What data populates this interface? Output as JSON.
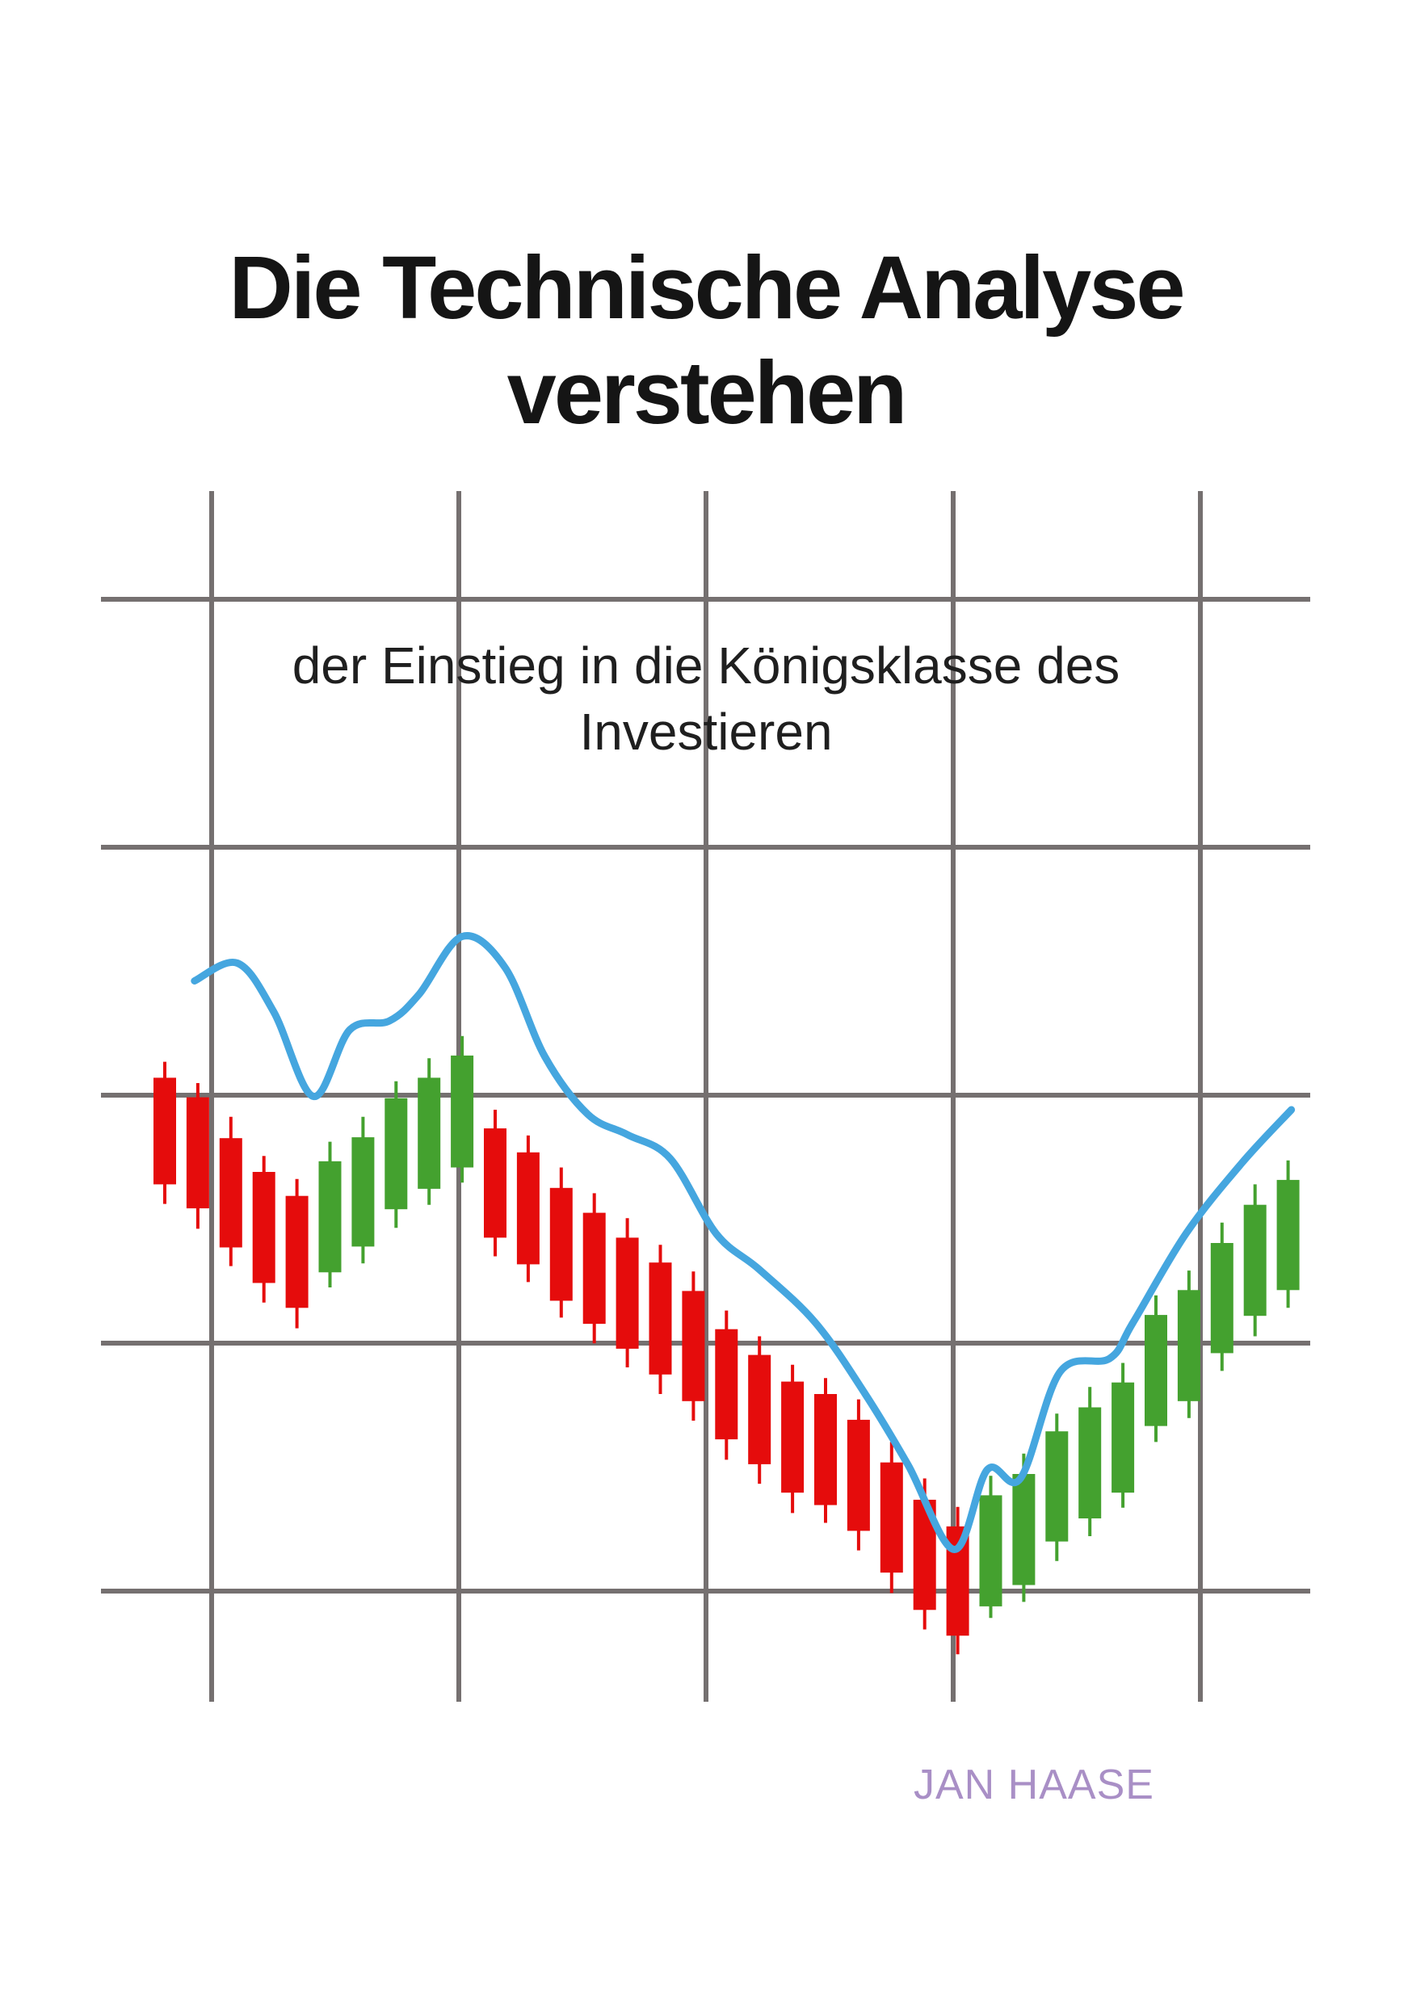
{
  "cover": {
    "title_lines": [
      "Die Technische Analyse",
      "verstehen"
    ],
    "subtitle_lines": [
      "der Einstieg in die Königsklasse des",
      "Investieren"
    ],
    "author": "JAN HAASE"
  },
  "colors": {
    "background": "#ffffff",
    "title": "#151515",
    "subtitle": "#1f1f1f",
    "author": "#a98fc6",
    "grid": "#757070",
    "bullish": "#44a12f",
    "bearish": "#e50c0c",
    "trend_line": "#45a6df"
  },
  "chart_data": {
    "type": "candlestick",
    "grid": true,
    "ylim": [
      0,
      100
    ],
    "candles": [
      {
        "o": 66.6,
        "c": 54.6,
        "h": 68.4,
        "l": 52.4
      },
      {
        "o": 64.4,
        "c": 51.9,
        "h": 66.0,
        "l": 49.6
      },
      {
        "o": 59.8,
        "c": 47.5,
        "h": 62.2,
        "l": 45.4
      },
      {
        "o": 56.0,
        "c": 43.5,
        "h": 57.8,
        "l": 41.3
      },
      {
        "o": 53.3,
        "c": 40.7,
        "h": 55.2,
        "l": 38.4
      },
      {
        "o": 44.7,
        "c": 57.2,
        "h": 59.4,
        "l": 43.0
      },
      {
        "o": 47.6,
        "c": 59.9,
        "h": 62.2,
        "l": 45.7
      },
      {
        "o": 51.8,
        "c": 64.3,
        "h": 66.2,
        "l": 49.7
      },
      {
        "o": 54.1,
        "c": 66.6,
        "h": 68.8,
        "l": 52.3
      },
      {
        "o": 56.5,
        "c": 69.1,
        "h": 71.3,
        "l": 54.8
      },
      {
        "o": 60.9,
        "c": 48.6,
        "h": 63.0,
        "l": 46.5
      },
      {
        "o": 58.2,
        "c": 45.6,
        "h": 60.1,
        "l": 43.6
      },
      {
        "o": 54.2,
        "c": 41.5,
        "h": 56.5,
        "l": 39.6
      },
      {
        "o": 51.4,
        "c": 38.9,
        "h": 53.6,
        "l": 36.7
      },
      {
        "o": 48.6,
        "c": 36.1,
        "h": 50.8,
        "l": 34.0
      },
      {
        "o": 45.8,
        "c": 33.2,
        "h": 47.8,
        "l": 31.0
      },
      {
        "o": 42.6,
        "c": 30.2,
        "h": 44.8,
        "l": 28.0
      },
      {
        "o": 38.3,
        "c": 25.9,
        "h": 40.4,
        "l": 23.6
      },
      {
        "o": 35.4,
        "c": 23.1,
        "h": 37.5,
        "l": 20.9
      },
      {
        "o": 32.4,
        "c": 19.9,
        "h": 34.3,
        "l": 17.6
      },
      {
        "o": 31.0,
        "c": 18.5,
        "h": 32.8,
        "l": 16.5
      },
      {
        "o": 28.1,
        "c": 15.6,
        "h": 30.4,
        "l": 13.4
      },
      {
        "o": 23.3,
        "c": 10.9,
        "h": 25.6,
        "l": 8.6
      },
      {
        "o": 19.1,
        "c": 6.7,
        "h": 21.5,
        "l": 4.5
      },
      {
        "o": 16.1,
        "c": 3.8,
        "h": 18.3,
        "l": 1.7
      },
      {
        "o": 7.1,
        "c": 19.6,
        "h": 21.8,
        "l": 5.8
      },
      {
        "o": 9.5,
        "c": 22.0,
        "h": 24.3,
        "l": 7.6
      },
      {
        "o": 14.4,
        "c": 26.8,
        "h": 28.8,
        "l": 12.2
      },
      {
        "o": 17.0,
        "c": 29.5,
        "h": 31.8,
        "l": 15.0
      },
      {
        "o": 19.9,
        "c": 32.3,
        "h": 34.5,
        "l": 18.2
      },
      {
        "o": 27.4,
        "c": 39.9,
        "h": 42.1,
        "l": 25.6
      },
      {
        "o": 30.2,
        "c": 42.7,
        "h": 44.9,
        "l": 28.3
      },
      {
        "o": 35.6,
        "c": 48.0,
        "h": 50.3,
        "l": 33.6
      },
      {
        "o": 39.8,
        "c": 52.3,
        "h": 54.6,
        "l": 37.5
      },
      {
        "o": 42.7,
        "c": 55.1,
        "h": 57.3,
        "l": 40.7
      }
    ],
    "trend_line": [
      [
        0.9,
        77.5
      ],
      [
        2.2,
        79.5
      ],
      [
        3.3,
        74.0
      ],
      [
        4.5,
        64.5
      ],
      [
        5.6,
        72.0
      ],
      [
        6.8,
        73.0
      ],
      [
        7.7,
        76.0
      ],
      [
        9.0,
        82.5
      ],
      [
        10.3,
        79.0
      ],
      [
        11.5,
        69.0
      ],
      [
        12.8,
        62.5
      ],
      [
        14.0,
        60.2
      ],
      [
        15.3,
        57.5
      ],
      [
        16.7,
        49.0
      ],
      [
        18.0,
        45.0
      ],
      [
        19.7,
        39.0
      ],
      [
        21.2,
        31.0
      ],
      [
        22.5,
        23.0
      ],
      [
        23.9,
        13.5
      ],
      [
        24.9,
        22.5
      ],
      [
        25.9,
        21.5
      ],
      [
        27.1,
        33.5
      ],
      [
        28.6,
        35.0
      ],
      [
        29.3,
        39.0
      ],
      [
        30.9,
        49.0
      ],
      [
        32.6,
        57.0
      ],
      [
        34.1,
        63.0
      ]
    ]
  }
}
